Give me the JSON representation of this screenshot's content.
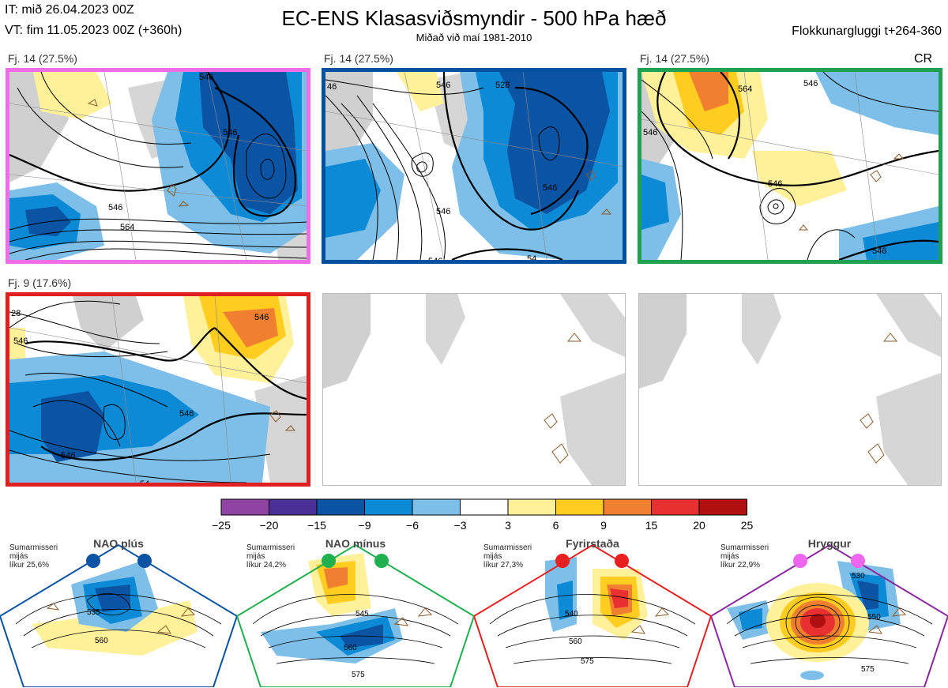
{
  "header": {
    "it": "IT: mið 26.04.2023 00Z",
    "vt": "VT: fim 11.05.2023 00Z  (+360h)",
    "title": "EC-ENS Klasasviðsmyndir - 500 hPa hæð",
    "subtitle": "Miðað við maí 1981-2010",
    "window": "Flokkunargluggi t+264-360"
  },
  "panels": [
    {
      "label": "Fj. 14 (27.5%)",
      "border": "#ee6ee8",
      "contours": [
        "546",
        "546",
        "564",
        "546",
        "546"
      ],
      "extra": ""
    },
    {
      "label": "Fj. 14 (27.5%)",
      "border": "#0050a0",
      "contours": [
        "546",
        "528",
        "546",
        "546",
        "546",
        "54"
      ],
      "extra": "46"
    },
    {
      "label": "Fj. 14 (27.5%)",
      "border": "#20a050",
      "contours": [
        "546",
        "546",
        "564",
        "546",
        "546"
      ],
      "extra": "CR"
    },
    {
      "label": "Fj. 9 (17.6%)",
      "border": "#e02020",
      "contours": [
        "546",
        "546",
        "546",
        "546",
        "54"
      ],
      "extra": "28"
    },
    {
      "label": "",
      "border": "#bbbbbb",
      "contours": [],
      "extra": ""
    },
    {
      "label": "",
      "border": "#bbbbbb",
      "contours": [],
      "extra": ""
    }
  ],
  "colorbar": {
    "ticks": [
      "−25",
      "−20",
      "−15",
      "−9",
      "−6",
      "−3",
      "3",
      "6",
      "9",
      "15",
      "20",
      "25"
    ],
    "colors": [
      "#8e44a0",
      "#4a2f96",
      "#0b54a4",
      "#0d8ad6",
      "#7dbfe8",
      "#ffffff",
      "#fff09a",
      "#ffcc20",
      "#f08030",
      "#e83030",
      "#b01010"
    ]
  },
  "regimes": [
    {
      "name": "NAO plús",
      "text": [
        "Sumarmisseri",
        "mijás",
        "líkur 25,6%"
      ],
      "color": "#0b54a4",
      "labels": [
        "535",
        "560"
      ]
    },
    {
      "name": "NAO mínus",
      "text": [
        "Sumarmisseri",
        "mijás",
        "líkur 24,2%"
      ],
      "color": "#20b050",
      "labels": [
        "545",
        "560",
        "575"
      ]
    },
    {
      "name": "Fyrirstaða",
      "text": [
        "Sumarmisseri",
        "mijás",
        "líkur 27,3%"
      ],
      "color": "#e82020",
      "labels": [
        "540",
        "560",
        "575"
      ]
    },
    {
      "name": "Hryggur",
      "text": [
        "Sumarmisseri",
        "mijás",
        "líkur 22,9%"
      ],
      "color": "#ee66ee",
      "labels": [
        "530",
        "550",
        "575"
      ]
    }
  ]
}
